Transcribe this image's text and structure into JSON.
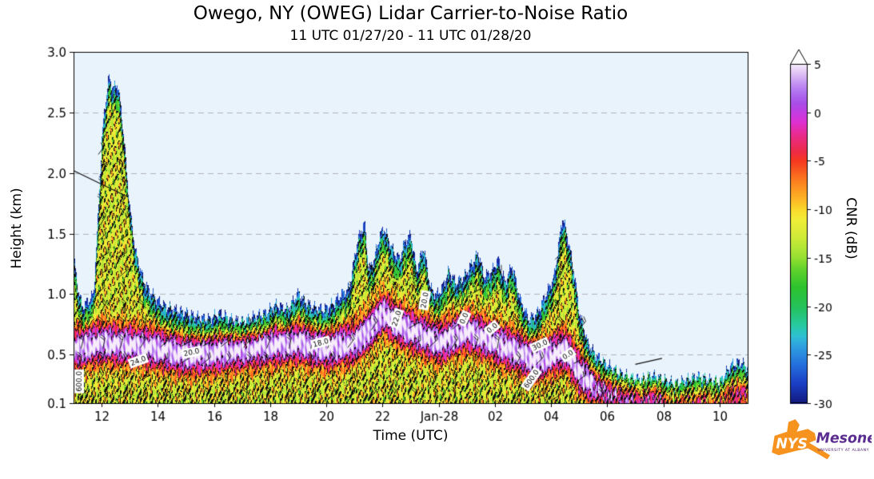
{
  "header": {
    "title": "Owego, NY (OWEG) Lidar Carrier-to-Noise Ratio",
    "subtitle": "11 UTC 01/27/20 - 11 UTC 01/28/20"
  },
  "axes": {
    "ylabel": "Height (km)",
    "xlabel": "Time (UTC)",
    "colorbar_label": "CNR (dB)"
  },
  "logo": {
    "nys": "NYS",
    "mesonet": "Mesonet",
    "tagline": "UNIVERSITY AT ALBANY",
    "colors": {
      "orange": "#F6921E",
      "purple": "#46166B",
      "mesonet_purple": "#5C2D91"
    }
  },
  "chart_data": {
    "type": "heatmap",
    "title": "Owego, NY (OWEG) Lidar Carrier-to-Noise Ratio",
    "subtitle": "11 UTC 01/27/20 - 11 UTC 01/28/20",
    "xlabel": "Time (UTC)",
    "ylabel": "Height (km)",
    "colorbar_label": "CNR (dB)",
    "x_start": "11 UTC 01/27/20",
    "x_end": "11 UTC 01/28/20",
    "xlim_hours": [
      0,
      24
    ],
    "ylim": [
      0.1,
      3.0
    ],
    "x_ticks": [
      {
        "hour": 1,
        "label": "12"
      },
      {
        "hour": 3,
        "label": "14"
      },
      {
        "hour": 5,
        "label": "16"
      },
      {
        "hour": 7,
        "label": "18"
      },
      {
        "hour": 9,
        "label": "20"
      },
      {
        "hour": 11,
        "label": "22"
      },
      {
        "hour": 13,
        "label": "Jan-28"
      },
      {
        "hour": 15,
        "label": "02"
      },
      {
        "hour": 17,
        "label": "04"
      },
      {
        "hour": 19,
        "label": "06"
      },
      {
        "hour": 21,
        "label": "08"
      },
      {
        "hour": 23,
        "label": "10"
      }
    ],
    "y_ticks": [
      0.1,
      0.5,
      1.0,
      1.5,
      2.0,
      2.5,
      3.0
    ],
    "y_gridlines": [
      0.5,
      1.0,
      1.5,
      2.0,
      2.5
    ],
    "plot_bg": "#e9f3fc",
    "colorbar": {
      "range": [
        -30,
        5
      ],
      "ticks": [
        5,
        0,
        -5,
        -10,
        -15,
        -20,
        -25,
        -30
      ],
      "extend_above": "white arrow (> 5 dB)",
      "stops": [
        [
          -30,
          "#131a7d"
        ],
        [
          -28,
          "#1b3ec4"
        ],
        [
          -26,
          "#2470dd"
        ],
        [
          -24,
          "#2fa3e0"
        ],
        [
          -23,
          "#2fc2d2"
        ],
        [
          -22,
          "#28caa4"
        ],
        [
          -20,
          "#25c25b"
        ],
        [
          -18,
          "#2dc32e"
        ],
        [
          -16,
          "#67d42c"
        ],
        [
          -15,
          "#95e033"
        ],
        [
          -13,
          "#cdeb38"
        ],
        [
          -11,
          "#f2ee39"
        ],
        [
          -10,
          "#fbda2c"
        ],
        [
          -9,
          "#fdb826"
        ],
        [
          -7,
          "#fc7e20"
        ],
        [
          -5,
          "#f6391f"
        ],
        [
          -4,
          "#ee2b47"
        ],
        [
          -2,
          "#e82c9b"
        ],
        [
          -1,
          "#df31d2"
        ],
        [
          0,
          "#c43fe3"
        ],
        [
          1,
          "#a94fe8"
        ],
        [
          2,
          "#b06ef0"
        ],
        [
          3,
          "#c493f3"
        ],
        [
          4,
          "#dfc0f4"
        ],
        [
          5,
          "#f6ecfa"
        ]
      ]
    },
    "cnr_min_db": -30,
    "cnr_peak_db": 5,
    "signal_top_km": {
      "hours": [
        0,
        0.15,
        0.3,
        0.5,
        0.7,
        0.85,
        1.0,
        1.1,
        1.25,
        1.4,
        1.55,
        1.7,
        1.85,
        2.0,
        2.2,
        2.5,
        2.8,
        3.0,
        3.3,
        3.6,
        4.0,
        4.4,
        4.8,
        5.2,
        5.6,
        6.0,
        6.4,
        6.8,
        7.2,
        7.6,
        8.0,
        8.2,
        8.5,
        8.9,
        9.2,
        9.5,
        9.8,
        10.1,
        10.35,
        10.5,
        10.7,
        10.9,
        11.05,
        11.2,
        11.4,
        11.6,
        11.8,
        12.0,
        12.2,
        12.45,
        12.7,
        12.9,
        13.1,
        13.35,
        13.6,
        13.9,
        14.15,
        14.4,
        14.6,
        14.9,
        15.1,
        15.35,
        15.6,
        15.9,
        16.2,
        16.5,
        16.8,
        17.1,
        17.4,
        17.6,
        17.8,
        18.0,
        18.3,
        18.6,
        19.0,
        19.4,
        19.8,
        20.2,
        20.6,
        21.0,
        21.4,
        21.8,
        22.2,
        22.6,
        23.0,
        23.4,
        23.7,
        24.0
      ],
      "km": [
        1.3,
        1.05,
        0.9,
        0.95,
        1.0,
        1.6,
        2.3,
        2.55,
        2.8,
        2.7,
        2.75,
        2.5,
        2.1,
        1.7,
        1.35,
        1.1,
        1.0,
        0.95,
        0.9,
        0.88,
        0.85,
        0.82,
        0.8,
        0.85,
        0.8,
        0.78,
        0.82,
        0.85,
        0.92,
        0.88,
        1.02,
        0.95,
        0.9,
        0.88,
        0.92,
        1.0,
        1.05,
        1.45,
        1.6,
        1.2,
        1.3,
        1.5,
        1.55,
        1.45,
        1.35,
        1.3,
        1.45,
        1.5,
        1.2,
        1.4,
        1.05,
        1.0,
        1.05,
        1.2,
        1.1,
        1.15,
        1.25,
        1.35,
        1.15,
        1.2,
        1.3,
        1.1,
        1.25,
        0.95,
        0.8,
        0.85,
        1.0,
        1.15,
        1.65,
        1.45,
        1.2,
        0.85,
        0.6,
        0.5,
        0.42,
        0.36,
        0.32,
        0.3,
        0.34,
        0.3,
        0.27,
        0.3,
        0.33,
        0.3,
        0.28,
        0.42,
        0.45,
        0.4
      ]
    },
    "cnr_max_band_km": {
      "hours": [
        0,
        1,
        2,
        3,
        4,
        5,
        6,
        7,
        8,
        9,
        10,
        10.5,
        11,
        11.5,
        12,
        12.5,
        13,
        13.5,
        14,
        14.5,
        15,
        15.5,
        16,
        16.5,
        17,
        17.5,
        18,
        18.5,
        19,
        20,
        21,
        22,
        23,
        24
      ],
      "km": [
        0.55,
        0.6,
        0.58,
        0.55,
        0.5,
        0.52,
        0.55,
        0.58,
        0.6,
        0.55,
        0.6,
        0.7,
        0.85,
        0.75,
        0.7,
        0.65,
        0.6,
        0.65,
        0.7,
        0.65,
        0.6,
        0.55,
        0.5,
        0.45,
        0.5,
        0.55,
        0.35,
        0.25,
        0.2,
        0.15,
        0.14,
        0.15,
        0.18,
        0.2
      ]
    },
    "contour_levels_db": [
      -25,
      -20,
      -15,
      -10,
      -5,
      0
    ],
    "contour_labels": [
      {
        "hour": 2.3,
        "km": 0.45,
        "text": "24.0",
        "rot": -20
      },
      {
        "hour": 4.2,
        "km": 0.52,
        "text": "20.0",
        "rot": -12
      },
      {
        "hour": 8.8,
        "km": 0.6,
        "text": "18.0",
        "rot": -15
      },
      {
        "hour": 11.5,
        "km": 0.8,
        "text": "22.0",
        "rot": -72
      },
      {
        "hour": 12.5,
        "km": 0.95,
        "text": "20.0",
        "rot": -80
      },
      {
        "hour": 13.9,
        "km": 0.8,
        "text": "0.0",
        "rot": -65
      },
      {
        "hour": 14.9,
        "km": 0.72,
        "text": "0.0",
        "rot": -40
      },
      {
        "hour": 16.6,
        "km": 0.58,
        "text": "30.0",
        "rot": -25
      },
      {
        "hour": 0.2,
        "km": 0.28,
        "text": "600.0",
        "rot": -90
      },
      {
        "hour": 16.3,
        "km": 0.3,
        "text": "600.0",
        "rot": -55
      },
      {
        "hour": 17.6,
        "km": 0.5,
        "text": "0.0",
        "rot": -35
      }
    ],
    "stray_contour_segments": [
      {
        "hr1": 0.0,
        "km1": 2.02,
        "hr2": 1.95,
        "km2": 1.8
      },
      {
        "hr1": 20.0,
        "km1": 0.42,
        "hr2": 20.95,
        "km2": 0.47
      }
    ],
    "wind_barbs": {
      "present": true,
      "color": "#000000",
      "note": "dense black wind barbs plotted below the lidar signal top across the full period"
    }
  }
}
